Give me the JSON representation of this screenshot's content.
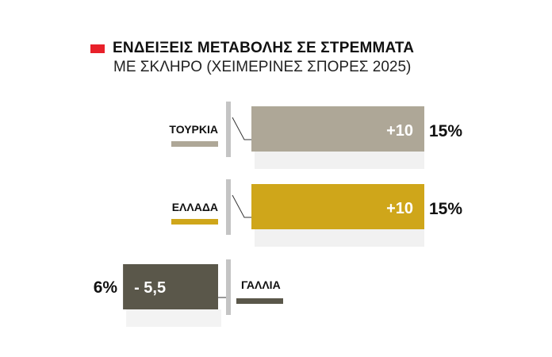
{
  "chart_data": {
    "type": "bar",
    "orientation": "horizontal",
    "title": "ΕΝΔΕΙΞΕΙΣ ΜΕΤΑΒΟΛΗΣ ΣΕ ΣΤΡΕΜΜΑΤΑ",
    "subtitle": "ΜΕ ΣΚΛΗΡΟ (ΧΕΙΜΕΡΙΝΕΣ ΣΠΟΡΕΣ 2025)",
    "title_marker_color": "#e8202a",
    "categories": [
      "ΤΟΥΡΚΙΑ",
      "ΕΛΛΑΔΑ",
      "ΓΑΛΛΙΑ"
    ],
    "values": [
      10,
      10,
      -5.5
    ],
    "value_labels": [
      "+10",
      "+10",
      "- 5,5"
    ],
    "percent_labels": [
      "15%",
      "15%",
      "6%"
    ],
    "colors": [
      "#aea797",
      "#cfa61a",
      "#5a574a"
    ],
    "legend": "per-bar"
  }
}
